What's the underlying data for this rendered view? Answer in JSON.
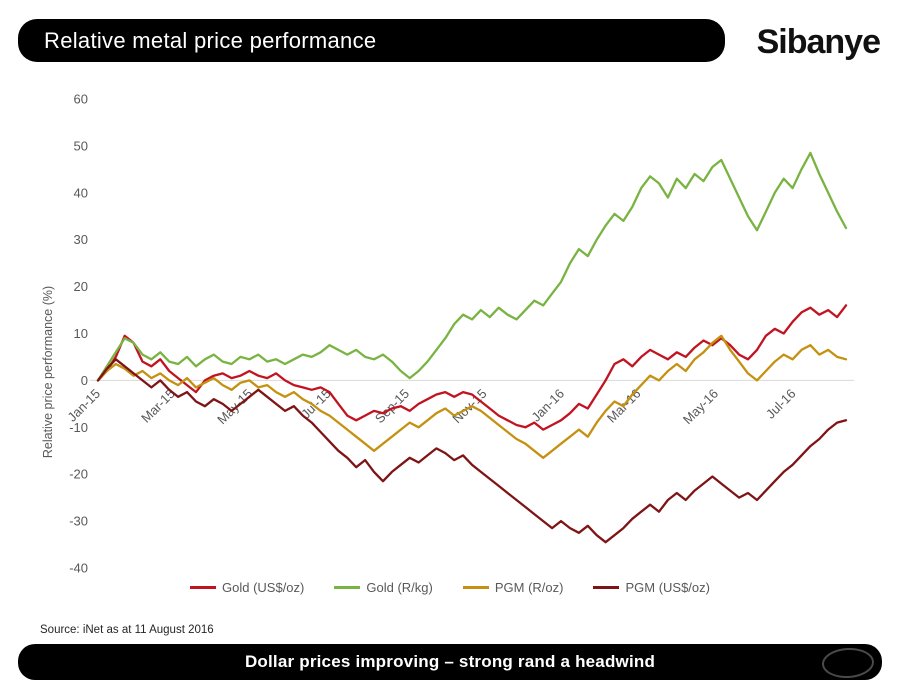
{
  "header": {
    "title": "Relative metal price performance",
    "logo_text": "Sibanye"
  },
  "footer": {
    "source": "Source: iNet as at 11 August 2016",
    "banner": "Dollar prices improving – strong rand a headwind"
  },
  "colors": {
    "bar_background": "#000000",
    "bar_text": "#ffffff",
    "axis_text": "#595959",
    "zero_line": "#d9d9d9"
  },
  "chart_data": {
    "type": "line",
    "title": "Relative metal price performance",
    "ylabel": "Relative price performance (%)",
    "ylim": [
      -40,
      60
    ],
    "yticks": [
      60,
      50,
      40,
      30,
      20,
      10,
      0,
      -10,
      -20,
      -30,
      -40
    ],
    "grid": false,
    "zero_line": true,
    "legend_position": "bottom",
    "x_unit": "weeks since Jan-2015 (data to 11 Aug 2016)",
    "x_range": [
      0,
      84
    ],
    "xticks": [
      {
        "label": "Jan-15",
        "x": 0
      },
      {
        "label": "Mar-15",
        "x": 8.4
      },
      {
        "label": "May-15",
        "x": 17.1
      },
      {
        "label": "Jul-15",
        "x": 25.9
      },
      {
        "label": "Sep-15",
        "x": 34.7
      },
      {
        "label": "Nov-15",
        "x": 43.4
      },
      {
        "label": "Jan-16",
        "x": 52.1
      },
      {
        "label": "Mar-16",
        "x": 60.7
      },
      {
        "label": "May-16",
        "x": 69.4
      },
      {
        "label": "Jul-16",
        "x": 78.1
      }
    ],
    "series": [
      {
        "name": "Gold (US$/oz)",
        "color": "#c21320",
        "values": [
          0,
          2,
          5,
          9.5,
          8,
          4,
          3,
          4.5,
          2,
          0.5,
          -1,
          -2.5,
          0,
          1,
          1.5,
          0.5,
          1,
          2,
          1,
          0.5,
          1.5,
          0,
          -1,
          -1.5,
          -2,
          -1.5,
          -2.5,
          -5,
          -7.5,
          -8.5,
          -7.5,
          -6.5,
          -7,
          -6,
          -5.5,
          -6.5,
          -5,
          -4,
          -3,
          -2.5,
          -3.5,
          -2.5,
          -3,
          -4.5,
          -6,
          -7.5,
          -8.5,
          -9.5,
          -10,
          -9,
          -10.5,
          -9.5,
          -8.5,
          -7,
          -5,
          -6,
          -3,
          0,
          3.5,
          4.5,
          3,
          5,
          6.5,
          5.5,
          4.5,
          6,
          5,
          7,
          8.5,
          7.5,
          9,
          7.5,
          5.5,
          4.5,
          6.5,
          9.5,
          11,
          10,
          12.5,
          14.5,
          15.5,
          14,
          15,
          13.5,
          16
        ]
      },
      {
        "name": "Gold (R/kg)",
        "color": "#79b342",
        "values": [
          0,
          3,
          6,
          9,
          8,
          5.5,
          4.5,
          6,
          4,
          3.5,
          5,
          3,
          4.5,
          5.5,
          4,
          3.5,
          5,
          4.5,
          5.5,
          4,
          4.5,
          3.5,
          4.5,
          5.5,
          5,
          6,
          7.5,
          6.5,
          5.5,
          6.5,
          5,
          4.5,
          5.5,
          4,
          2,
          0.5,
          2,
          4,
          6.5,
          9,
          12,
          14,
          13,
          15,
          13.5,
          15.5,
          14,
          13,
          15,
          17,
          16,
          18.5,
          21,
          25,
          28,
          26.5,
          30,
          33,
          35.5,
          34,
          37,
          41,
          43.5,
          42,
          39,
          43,
          41,
          44,
          42.5,
          45.5,
          47,
          43,
          39,
          35,
          32,
          36,
          40,
          43,
          41,
          45,
          48.5,
          44,
          40,
          36,
          32.5
        ]
      },
      {
        "name": "PGM (R/oz)",
        "color": "#c49111",
        "values": [
          0,
          2,
          3.5,
          2.5,
          1,
          2,
          0.5,
          1.5,
          0,
          -1,
          0.5,
          -1.5,
          -0.5,
          0.5,
          -1,
          -2,
          -0.5,
          0,
          -1.5,
          -1,
          -2.5,
          -3.5,
          -2.5,
          -4,
          -5,
          -6.5,
          -7.5,
          -9,
          -10.5,
          -12,
          -13.5,
          -15,
          -13.5,
          -12,
          -10.5,
          -9,
          -10,
          -8.5,
          -7,
          -6,
          -7.5,
          -6.5,
          -5.5,
          -6.5,
          -8,
          -9.5,
          -11,
          -12.5,
          -13.5,
          -15,
          -16.5,
          -15,
          -13.5,
          -12,
          -10.5,
          -12,
          -9,
          -6.5,
          -4.5,
          -5.5,
          -3,
          -1,
          1,
          0,
          2,
          3.5,
          2,
          4.5,
          6,
          8,
          9.5,
          6.5,
          4,
          1.5,
          0,
          2,
          4,
          5.5,
          4.5,
          6.5,
          7.5,
          5.5,
          6.5,
          5,
          4.5
        ]
      },
      {
        "name": "PGM (US$/oz)",
        "color": "#7f1416",
        "values": [
          0,
          2.5,
          4.5,
          3,
          1.5,
          0,
          -1.5,
          0,
          -2,
          -3.5,
          -2.5,
          -4.5,
          -5.5,
          -4,
          -5,
          -6.5,
          -5,
          -3.5,
          -2,
          -3.5,
          -5,
          -6.5,
          -5.5,
          -7.5,
          -9,
          -11,
          -13,
          -15,
          -16.5,
          -18.5,
          -17,
          -19.5,
          -21.5,
          -19.5,
          -18,
          -16.5,
          -17.5,
          -16,
          -14.5,
          -15.5,
          -17,
          -16,
          -18,
          -19.5,
          -21,
          -22.5,
          -24,
          -25.5,
          -27,
          -28.5,
          -30,
          -31.5,
          -30,
          -31.5,
          -32.5,
          -31,
          -33,
          -34.5,
          -33,
          -31.5,
          -29.5,
          -28,
          -26.5,
          -28,
          -25.5,
          -24,
          -25.5,
          -23.5,
          -22,
          -20.5,
          -22,
          -23.5,
          -25,
          -24,
          -25.5,
          -23.5,
          -21.5,
          -19.5,
          -18,
          -16,
          -14,
          -12.5,
          -10.5,
          -9,
          -8.5
        ]
      }
    ]
  }
}
